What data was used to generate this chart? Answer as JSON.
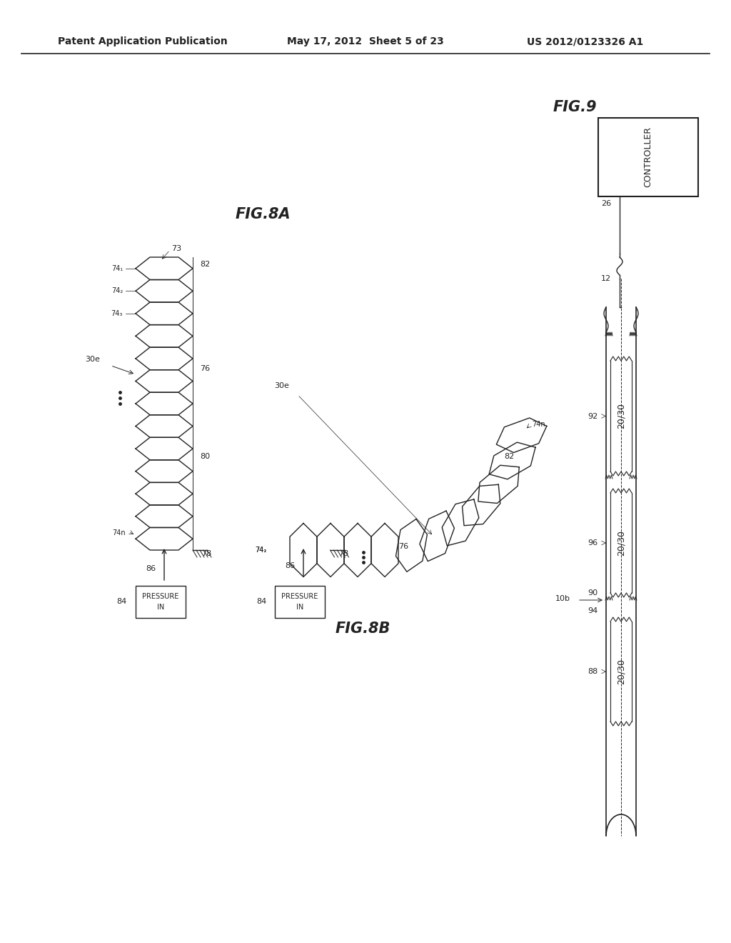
{
  "header_left": "Patent Application Publication",
  "header_center": "May 17, 2012  Sheet 5 of 23",
  "header_right": "US 2012/0123326 A1",
  "fig8a_label": "FIG.8A",
  "fig8b_label": "FIG.8B",
  "fig9_label": "FIG.9",
  "background_color": "#ffffff",
  "line_color": "#222222",
  "label_color": "#222222",
  "font_size_header": 10,
  "font_size_fig": 15,
  "font_size_label": 8
}
